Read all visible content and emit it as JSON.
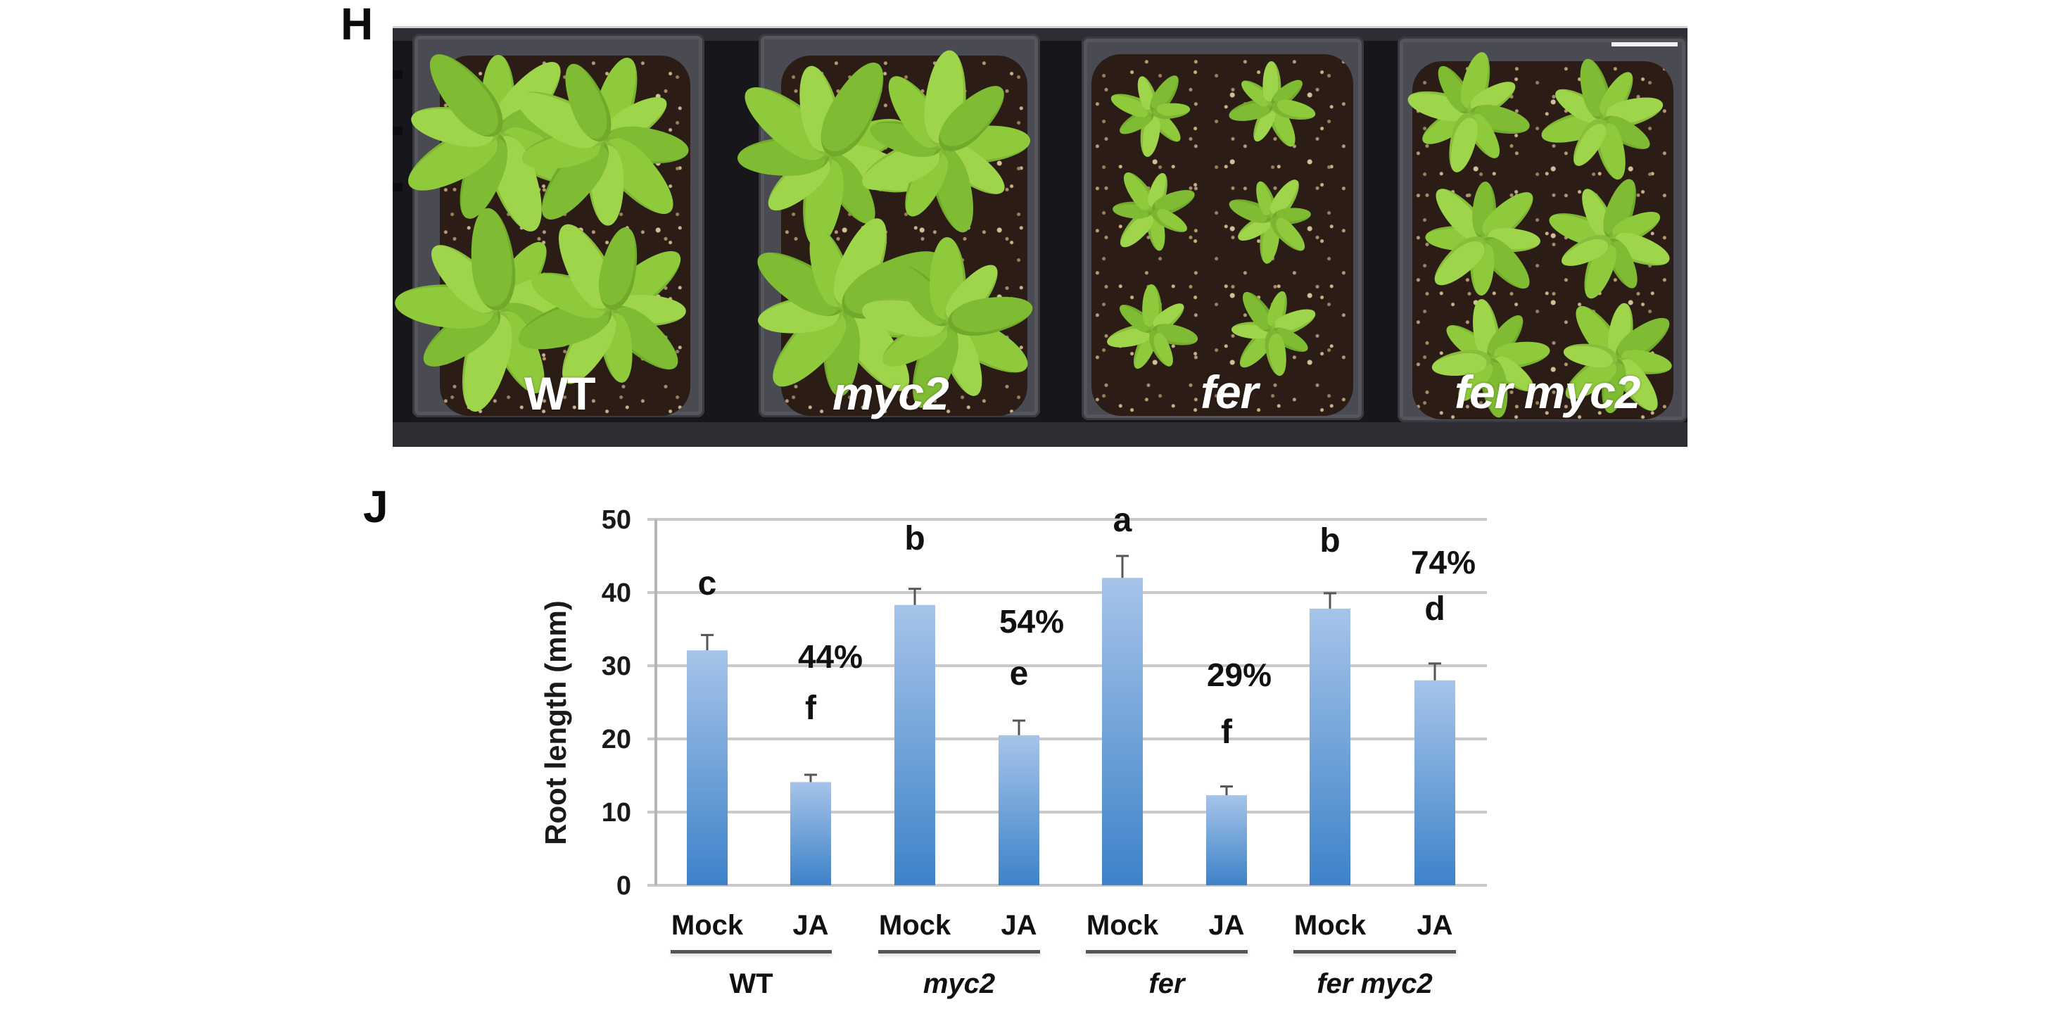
{
  "panels": {
    "photo_letter": "H",
    "chart_letter": "J"
  },
  "photo": {
    "description": "Top view of Arabidopsis rosettes in four pots",
    "trays": [
      {
        "label": "WT",
        "italic": false
      },
      {
        "label": "myc2",
        "italic": true
      },
      {
        "label": "fer",
        "italic": true
      },
      {
        "label": "fer myc2",
        "italic": true
      }
    ],
    "scale_bar": true
  },
  "colors": {
    "bar_top": "#a6c4e9",
    "bar_bottom": "#3d82c9",
    "gridline": "#c9c9c9",
    "axis": "#b5b5b5",
    "error_bar": "#555555",
    "text": "#111111"
  },
  "chart_data": {
    "type": "bar",
    "title": "",
    "xlabel": "",
    "ylabel": "Root length (mm)",
    "ylim": [
      0,
      50
    ],
    "yticks": [
      0,
      10,
      20,
      30,
      40,
      50
    ],
    "grid": true,
    "legend": null,
    "groups": [
      "WT",
      "myc2",
      "fer",
      "fer myc2"
    ],
    "group_italic": [
      false,
      true,
      true,
      true
    ],
    "treatments": [
      "Mock",
      "JA"
    ],
    "categories": [
      "WT Mock",
      "WT JA",
      "myc2 Mock",
      "myc2 JA",
      "fer Mock",
      "fer JA",
      "fer myc2 Mock",
      "fer myc2 JA"
    ],
    "x_tick_labels": [
      "Mock",
      "JA",
      "Mock",
      "JA",
      "Mock",
      "JA",
      "Mock",
      "JA"
    ],
    "values": [
      32.1,
      14.1,
      38.3,
      20.5,
      42.0,
      12.3,
      37.8,
      28.0
    ],
    "error_upper": [
      2.1,
      1.0,
      2.2,
      2.0,
      3.0,
      1.2,
      2.1,
      2.3
    ],
    "significance_letters": [
      "c",
      "f",
      "b",
      "e",
      "a",
      "f",
      "b",
      "d"
    ],
    "percent_annotations": [
      {
        "category": "WT JA",
        "text": "44%"
      },
      {
        "category": "myc2 JA",
        "text": "54%"
      },
      {
        "category": "fer JA",
        "text": "29%"
      },
      {
        "category": "fer myc2 JA",
        "text": "74%"
      }
    ]
  }
}
